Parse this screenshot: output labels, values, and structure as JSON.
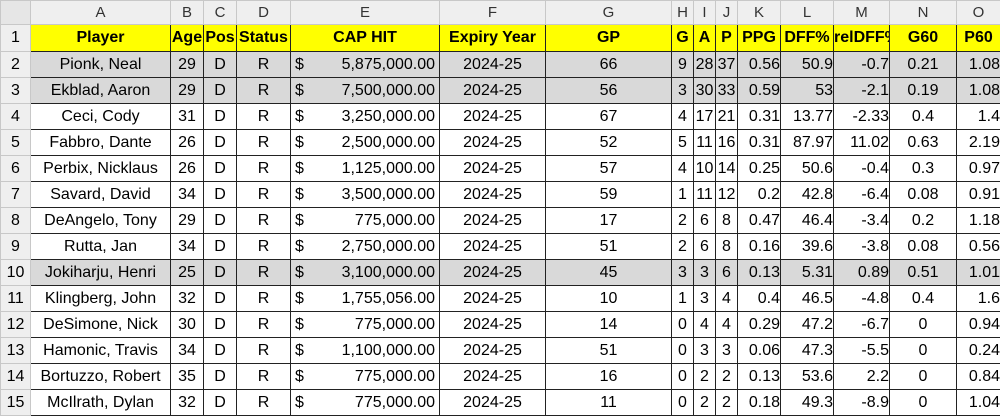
{
  "columns": [
    "A",
    "B",
    "C",
    "D",
    "E",
    "F",
    "G",
    "H",
    "I",
    "J",
    "K",
    "L",
    "M",
    "N",
    "O"
  ],
  "header_row_number": "1",
  "headers": [
    "Player",
    "Age",
    "Pos",
    "Status",
    "CAP HIT",
    "Expiry Year",
    "GP",
    "G",
    "A",
    "P",
    "PPG",
    "DFF%",
    "relDFF%",
    "G60",
    "P60"
  ],
  "rows": [
    {
      "num": "2",
      "gray": true,
      "cells": [
        "Pionk, Neal",
        "29",
        "D",
        "R",
        "$5,875,000.00",
        "2024-25",
        "66",
        "9",
        "28",
        "37",
        "0.56",
        "50.9",
        "-0.7",
        "0.21",
        "1.08"
      ]
    },
    {
      "num": "3",
      "gray": true,
      "cells": [
        "Ekblad, Aaron",
        "29",
        "D",
        "R",
        "$7,500,000.00",
        "2024-25",
        "56",
        "3",
        "30",
        "33",
        "0.59",
        "53",
        "-2.1",
        "0.19",
        "1.08"
      ]
    },
    {
      "num": "4",
      "gray": false,
      "cells": [
        "Ceci, Cody",
        "31",
        "D",
        "R",
        "$3,250,000.00",
        "2024-25",
        "67",
        "4",
        "17",
        "21",
        "0.31",
        "13.77",
        "-2.33",
        "0.4",
        "1.4"
      ]
    },
    {
      "num": "5",
      "gray": false,
      "cells": [
        "Fabbro, Dante",
        "26",
        "D",
        "R",
        "$2,500,000.00",
        "2024-25",
        "52",
        "5",
        "11",
        "16",
        "0.31",
        "87.97",
        "11.02",
        "0.63",
        "2.19"
      ]
    },
    {
      "num": "6",
      "gray": false,
      "cells": [
        "Perbix, Nicklaus",
        "26",
        "D",
        "R",
        "$1,125,000.00",
        "2024-25",
        "57",
        "4",
        "10",
        "14",
        "0.25",
        "50.6",
        "-0.4",
        "0.3",
        "0.97"
      ]
    },
    {
      "num": "7",
      "gray": false,
      "cells": [
        "Savard, David",
        "34",
        "D",
        "R",
        "$3,500,000.00",
        "2024-25",
        "59",
        "1",
        "11",
        "12",
        "0.2",
        "42.8",
        "-6.4",
        "0.08",
        "0.91"
      ]
    },
    {
      "num": "8",
      "gray": false,
      "cells": [
        "DeAngelo, Tony",
        "29",
        "D",
        "R",
        "$   775,000.00",
        "2024-25",
        "17",
        "2",
        "6",
        "8",
        "0.47",
        "46.4",
        "-3.4",
        "0.2",
        "1.18"
      ]
    },
    {
      "num": "9",
      "gray": false,
      "cells": [
        "Rutta, Jan",
        "34",
        "D",
        "R",
        "$2,750,000.00",
        "2024-25",
        "51",
        "2",
        "6",
        "8",
        "0.16",
        "39.6",
        "-3.8",
        "0.08",
        "0.56"
      ]
    },
    {
      "num": "10",
      "gray": true,
      "cells": [
        "Jokiharju, Henri",
        "25",
        "D",
        "R",
        "$3,100,000.00",
        "2024-25",
        "45",
        "3",
        "3",
        "6",
        "0.13",
        "5.31",
        "0.89",
        "0.51",
        "1.01"
      ]
    },
    {
      "num": "11",
      "gray": false,
      "cells": [
        "Klingberg, John",
        "32",
        "D",
        "R",
        "$1,755,056.00",
        "2024-25",
        "10",
        "1",
        "3",
        "4",
        "0.4",
        "46.5",
        "-4.8",
        "0.4",
        "1.6"
      ]
    },
    {
      "num": "12",
      "gray": false,
      "cells": [
        "DeSimone, Nick",
        "30",
        "D",
        "R",
        "$   775,000.00",
        "2024-25",
        "14",
        "0",
        "4",
        "4",
        "0.29",
        "47.2",
        "-6.7",
        "0",
        "0.94"
      ]
    },
    {
      "num": "13",
      "gray": false,
      "cells": [
        "Hamonic, Travis",
        "34",
        "D",
        "R",
        "$1,100,000.00",
        "2024-25",
        "51",
        "0",
        "3",
        "3",
        "0.06",
        "47.3",
        "-5.5",
        "0",
        "0.24"
      ]
    },
    {
      "num": "14",
      "gray": false,
      "cells": [
        "Bortuzzo, Robert",
        "35",
        "D",
        "R",
        "$   775,000.00",
        "2024-25",
        "16",
        "0",
        "2",
        "2",
        "0.13",
        "53.6",
        "2.2",
        "0",
        "0.84"
      ]
    },
    {
      "num": "15",
      "gray": false,
      "cells": [
        "McIlrath, Dylan",
        "32",
        "D",
        "R",
        "$   775,000.00",
        "2024-25",
        "11",
        "0",
        "2",
        "2",
        "0.18",
        "49.3",
        "-8.9",
        "0",
        "1.04"
      ]
    }
  ]
}
